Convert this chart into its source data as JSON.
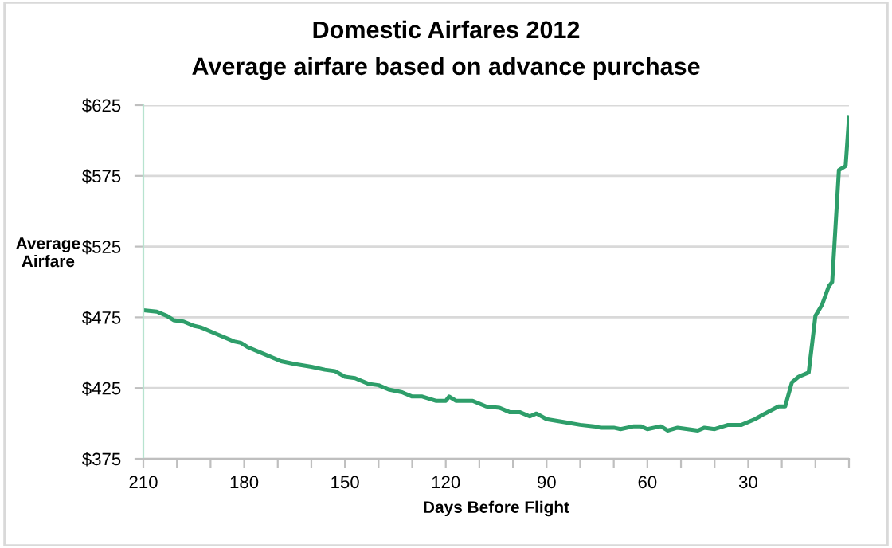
{
  "chart_data": {
    "type": "line",
    "title": "Domestic Airfares 2012",
    "subtitle": "Average airfare based on advance purchase",
    "xlabel": "Days Before Flight",
    "ylabel": "Average\nAirfare",
    "x": [
      210,
      206,
      203,
      201,
      198,
      195,
      193,
      188,
      183,
      181,
      179,
      174,
      169,
      165,
      160,
      156,
      153,
      150,
      147,
      143,
      140,
      137,
      133,
      130,
      127,
      123,
      120,
      119,
      117,
      112,
      108,
      104,
      101,
      98,
      95,
      93,
      90,
      85,
      80,
      76,
      74,
      70,
      68,
      64,
      62,
      60,
      56,
      54,
      51,
      48,
      45,
      43,
      40,
      36,
      32,
      28,
      25,
      21,
      19,
      17,
      15,
      12,
      10,
      8,
      6,
      5,
      3,
      1,
      0
    ],
    "series": [
      {
        "color": "#2e9e6a",
        "values": [
          480,
          479,
          476,
          473,
          472,
          469,
          468,
          463,
          458,
          457,
          454,
          449,
          444,
          442,
          440,
          438,
          437,
          433,
          432,
          428,
          427,
          424,
          422,
          419,
          419,
          416,
          416,
          419,
          416,
          416,
          412,
          411,
          408,
          408,
          405,
          407,
          403,
          401,
          399,
          398,
          397,
          397,
          396,
          398,
          398,
          396,
          398,
          395,
          397,
          396,
          395,
          397,
          396,
          399,
          399,
          403,
          407,
          412,
          412,
          429,
          433,
          436,
          476,
          484,
          497,
          500,
          579,
          582,
          616
        ]
      }
    ],
    "xlim": [
      210,
      0
    ],
    "xticks": [
      210,
      {
        "value": 200,
        "label": null
      },
      {
        "value": 190,
        "label": null
      },
      180,
      {
        "value": 170,
        "label": null
      },
      {
        "value": 160,
        "label": null
      },
      150,
      {
        "value": 140,
        "label": null
      },
      {
        "value": 130,
        "label": null
      },
      120,
      {
        "value": 110,
        "label": null
      },
      {
        "value": 100,
        "label": null
      },
      90,
      {
        "value": 80,
        "label": null
      },
      {
        "value": 70,
        "label": null
      },
      60,
      {
        "value": 50,
        "label": null
      },
      {
        "value": 40,
        "label": null
      },
      30,
      {
        "value": 20,
        "label": null
      },
      {
        "value": 10,
        "label": null
      },
      {
        "value": 0,
        "label": null
      }
    ],
    "ylim": [
      375,
      625
    ],
    "yticks": [
      {
        "value": 375,
        "label": "$375"
      },
      {
        "value": 425,
        "label": "$425"
      },
      {
        "value": 475,
        "label": "$475"
      },
      {
        "value": 525,
        "label": "$525"
      },
      {
        "value": 575,
        "label": "$575"
      },
      {
        "value": 625,
        "label": "$625"
      }
    ],
    "grid": "y",
    "marker": "none",
    "line_style": "solid",
    "legend": false
  }
}
